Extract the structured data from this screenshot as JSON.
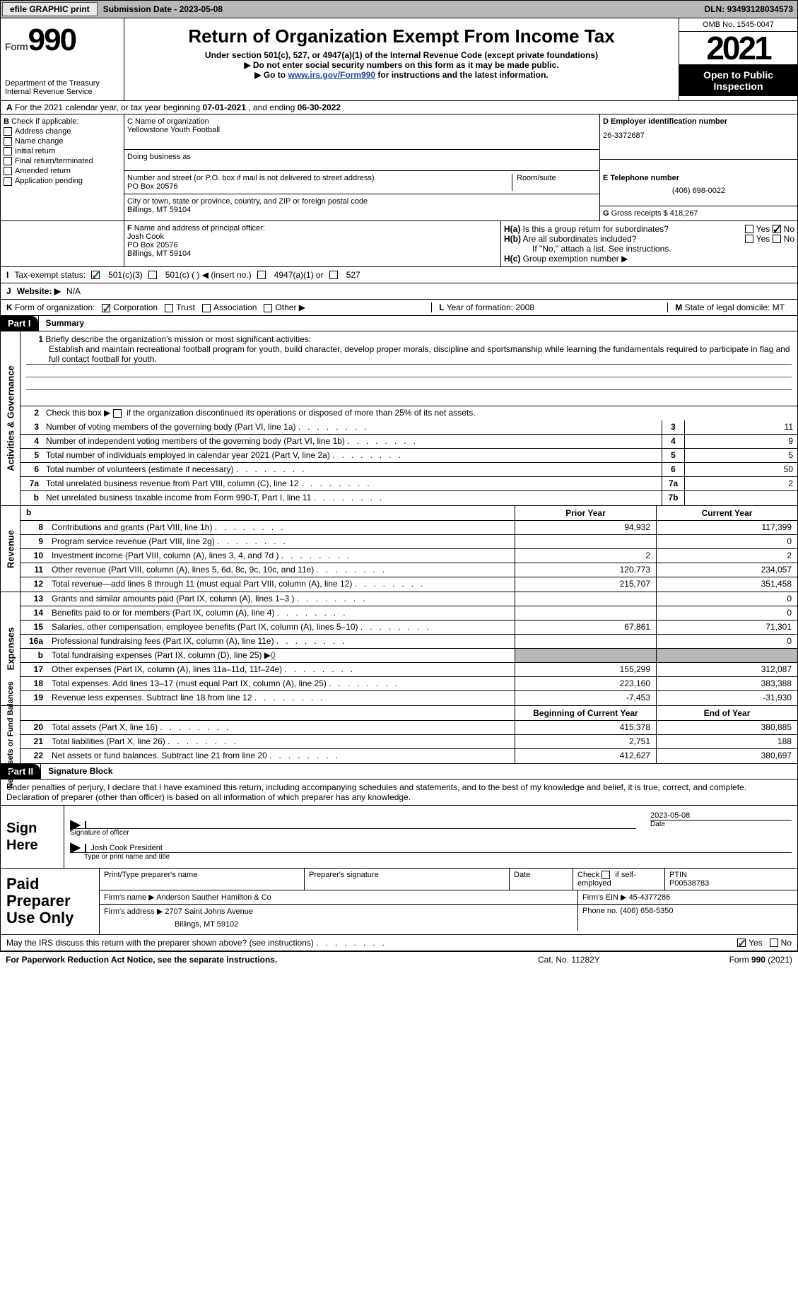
{
  "topbar": {
    "efile": "efile GRAPHIC print",
    "submission_label": "Submission Date - ",
    "submission_date": "2023-05-08",
    "dln_label": "DLN: ",
    "dln": "93493128034573"
  },
  "header": {
    "form_word": "Form",
    "form_num": "990",
    "dept": "Department of the Treasury",
    "irs": "Internal Revenue Service",
    "title": "Return of Organization Exempt From Income Tax",
    "sub1": "Under section 501(c), 527, or 4947(a)(1) of the Internal Revenue Code (except private foundations)",
    "sub2": "▶ Do not enter social security numbers on this form as it may be made public.",
    "sub3_pre": "▶ Go to ",
    "sub3_link": "www.irs.gov/Form990",
    "sub3_post": " for instructions and the latest information.",
    "omb": "OMB No. 1545-0047",
    "year": "2021",
    "open": "Open to Public Inspection"
  },
  "row_a": {
    "label": "A",
    "text": " For the 2021 calendar year, or tax year beginning ",
    "begin": "07-01-2021",
    "mid": "    , and ending ",
    "end": "06-30-2022"
  },
  "col_b": {
    "label": "B",
    "check": " Check if applicable:",
    "opts": [
      "Address change",
      "Name change",
      "Initial return",
      "Final return/terminated",
      "Amended return",
      "Application pending"
    ]
  },
  "col_c": {
    "name_label": "C Name of organization",
    "name": "Yellowstone Youth Football",
    "dba_label": "Doing business as",
    "addr_label": "Number and street (or P.O. box if mail is not delivered to street address)",
    "suite_label": "Room/suite",
    "addr": "PO Box 20576",
    "city_label": "City or town, state or province, country, and ZIP or foreign postal code",
    "city": "Billings, MT  59104"
  },
  "col_d": {
    "ein_label": "D Employer identification number",
    "ein": "26-3372687",
    "phone_label": "E Telephone number",
    "phone": "(406) 698-0022",
    "gross_label": "G",
    "gross_text": " Gross receipts $ ",
    "gross": "418,267"
  },
  "row_f": {
    "label": "F",
    "text": " Name and address of principal officer:",
    "name": "Josh Cook",
    "addr1": "PO Box 20576",
    "addr2": "Billings, MT  59104"
  },
  "row_h": {
    "ha_label": "H(a)",
    "ha_text": "  Is this a group return for subordinates?",
    "hb_label": "H(b)",
    "hb_text": "  Are all subordinates included?",
    "hb_note": "If \"No,\" attach a list. See instructions.",
    "hc_label": "H(c)",
    "hc_text": "  Group exemption number ▶",
    "yes": "Yes",
    "no": "No"
  },
  "row_i": {
    "label": "I",
    "text": "    Tax-exempt status:",
    "opt1": "501(c)(3)",
    "opt2": "501(c) (  ) ◀ (insert no.)",
    "opt3": "4947(a)(1) or",
    "opt4": "527"
  },
  "row_j": {
    "label": "J",
    "text": "    Website: ▶",
    "val": "  N/A"
  },
  "row_k": {
    "label": "K",
    "text": " Form of organization:",
    "opts": [
      "Corporation",
      "Trust",
      "Association",
      "Other ▶"
    ],
    "l_label": "L",
    "l_text": " Year of formation: ",
    "l_val": "2008",
    "m_label": "M",
    "m_text": " State of legal domicile: ",
    "m_val": "MT"
  },
  "part1": {
    "title": "Part I",
    "name": "Summary"
  },
  "activities": {
    "side": "Activities & Governance",
    "l1_num": "1",
    "l1_text": "Briefly describe the organization's mission or most significant activities:",
    "l1_desc": "Establish and maintain recreational football program for youth, build character, develop proper morals, discipline and sportsmanship while learning the fundamentals required to participate in flag and full contact football for youth.",
    "l2_num": "2",
    "l2_text": "Check this box ▶",
    "l2_text2": " if the organization discontinued its operations or disposed of more than 25% of its net assets.",
    "l3_num": "3",
    "l3_text": "Number of voting members of the governing body (Part VI, line 1a)",
    "l3_val": "11",
    "l4_num": "4",
    "l4_text": "Number of independent voting members of the governing body (Part VI, line 1b)",
    "l4_val": "9",
    "l5_num": "5",
    "l5_text": "Total number of individuals employed in calendar year 2021 (Part V, line 2a)",
    "l5_val": "5",
    "l6_num": "6",
    "l6_text": "Total number of volunteers (estimate if necessary)",
    "l6_val": "50",
    "l7a_num": "7a",
    "l7a_text": "Total unrelated business revenue from Part VIII, column (C), line 12",
    "l7a_val": "2",
    "l7b_num": "b",
    "l7b_text": "Net unrelated business taxable income from Form 990-T, Part I, line 11",
    "l7b_val": ""
  },
  "revenue": {
    "side": "Revenue",
    "prior_h": "Prior Year",
    "curr_h": "Current Year",
    "rows": [
      {
        "num": "8",
        "text": "Contributions and grants (Part VIII, line 1h)",
        "prior": "94,932",
        "curr": "117,399"
      },
      {
        "num": "9",
        "text": "Program service revenue (Part VIII, line 2g)",
        "prior": "",
        "curr": "0"
      },
      {
        "num": "10",
        "text": "Investment income (Part VIII, column (A), lines 3, 4, and 7d )",
        "prior": "2",
        "curr": "2"
      },
      {
        "num": "11",
        "text": "Other revenue (Part VIII, column (A), lines 5, 6d, 8c, 9c, 10c, and 11e)",
        "prior": "120,773",
        "curr": "234,057"
      },
      {
        "num": "12",
        "text": "Total revenue—add lines 8 through 11 (must equal Part VIII, column (A), line 12)",
        "prior": "215,707",
        "curr": "351,458"
      }
    ]
  },
  "expenses": {
    "side": "Expenses",
    "rows": [
      {
        "num": "13",
        "text": "Grants and similar amounts paid (Part IX, column (A), lines 1–3 )",
        "prior": "",
        "curr": "0"
      },
      {
        "num": "14",
        "text": "Benefits paid to or for members (Part IX, column (A), line 4)",
        "prior": "",
        "curr": "0"
      },
      {
        "num": "15",
        "text": "Salaries, other compensation, employee benefits (Part IX, column (A), lines 5–10)",
        "prior": "67,861",
        "curr": "71,301"
      },
      {
        "num": "16a",
        "text": "Professional fundraising fees (Part IX, column (A), line 11e)",
        "prior": "",
        "curr": "0"
      },
      {
        "num": "b",
        "text": "Total fundraising expenses (Part IX, column (D), line 25) ▶",
        "fund": "0",
        "shade": true
      },
      {
        "num": "17",
        "text": "Other expenses (Part IX, column (A), lines 11a–11d, 11f–24e)",
        "prior": "155,299",
        "curr": "312,087"
      },
      {
        "num": "18",
        "text": "Total expenses. Add lines 13–17 (must equal Part IX, column (A), line 25)",
        "prior": "223,160",
        "curr": "383,388"
      },
      {
        "num": "19",
        "text": "Revenue less expenses. Subtract line 18 from line 12",
        "prior": "-7,453",
        "curr": "-31,930"
      }
    ]
  },
  "netassets": {
    "side": "Net Assets or Fund Balances",
    "begin_h": "Beginning of Current Year",
    "end_h": "End of Year",
    "rows": [
      {
        "num": "20",
        "text": "Total assets (Part X, line 16)",
        "prior": "415,378",
        "curr": "380,885"
      },
      {
        "num": "21",
        "text": "Total liabilities (Part X, line 26)",
        "prior": "2,751",
        "curr": "188"
      },
      {
        "num": "22",
        "text": "Net assets or fund balances. Subtract line 21 from line 20",
        "prior": "412,627",
        "curr": "380,697"
      }
    ]
  },
  "part2": {
    "title": "Part II",
    "name": "Signature Block",
    "decl": "Under penalties of perjury, I declare that I have examined this return, including accompanying schedules and statements, and to the best of my knowledge and belief, it is true, correct, and complete. Declaration of preparer (other than officer) is based on all information of which preparer has any knowledge."
  },
  "sign": {
    "label": "Sign Here",
    "sig_of_officer": "Signature of officer",
    "date_label": "Date",
    "date": "2023-05-08",
    "name_title": "Josh Cook  President",
    "type_label": "Type or print name and title"
  },
  "paid": {
    "label": "Paid Preparer Use Only",
    "print_label": "Print/Type preparer's name",
    "sig_label": "Preparer's signature",
    "date_label": "Date",
    "check_label": "Check",
    "self_emp": "if self-employed",
    "ptin_label": "PTIN",
    "ptin": "P00538783",
    "firm_name_label": "Firm's name    ▶ ",
    "firm_name": "Anderson Sauther Hamilton & Co",
    "firm_ein_label": "Firm's EIN ▶ ",
    "firm_ein": "45-4377286",
    "firm_addr_label": "Firm's address ▶ ",
    "firm_addr1": "2707 Saint Johns Avenue",
    "firm_addr2": "Billings, MT  59102",
    "phone_label": "Phone no. ",
    "phone": "(406) 656-5350"
  },
  "irs_discuss": {
    "text": "May the IRS discuss this return with the preparer shown above? (see instructions)",
    "yes": "Yes",
    "no": "No"
  },
  "footer": {
    "left": "For Paperwork Reduction Act Notice, see the separate instructions.",
    "mid": "Cat. No. 11282Y",
    "right": "Form 990 (2021)"
  }
}
